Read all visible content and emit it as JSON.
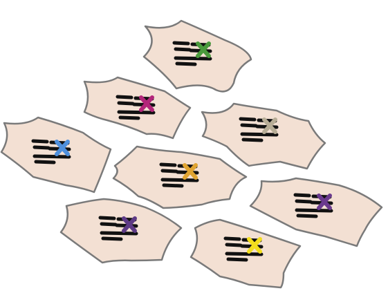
{
  "colors": {
    "cell_fill": "#f3e0d3",
    "cell_stroke": "#7a7a7a",
    "chromosome": "#111111"
  },
  "cells": [
    {
      "name": "cell-top",
      "icon": "chromosome-pair-icon",
      "marker_icon": "x-marker-icon",
      "marker_color": "#4a9a3c"
    },
    {
      "name": "cell-upper-left",
      "icon": "chromosome-pair-icon",
      "marker_icon": "x-marker-icon",
      "marker_color": "#b3267a"
    },
    {
      "name": "cell-right-upper",
      "icon": "chromosome-pair-icon",
      "marker_icon": "x-marker-icon",
      "marker_color": "#b7ad96"
    },
    {
      "name": "cell-left",
      "icon": "chromosome-pair-icon",
      "marker_icon": "x-marker-icon",
      "marker_color": "#4e8fdc"
    },
    {
      "name": "cell-center",
      "icon": "chromosome-pair-icon",
      "marker_icon": "x-marker-icon",
      "marker_color": "#e0a432"
    },
    {
      "name": "cell-right-lower",
      "icon": "chromosome-pair-icon",
      "marker_icon": "x-marker-icon",
      "marker_color": "#6b3a8e"
    },
    {
      "name": "cell-bottom-left",
      "icon": "chromosome-pair-icon",
      "marker_icon": "x-marker-icon",
      "marker_color": "#5e3a86"
    },
    {
      "name": "cell-bottom-center",
      "icon": "chromosome-pair-icon",
      "marker_icon": "x-marker-icon",
      "marker_color": "#f2de1e"
    }
  ]
}
